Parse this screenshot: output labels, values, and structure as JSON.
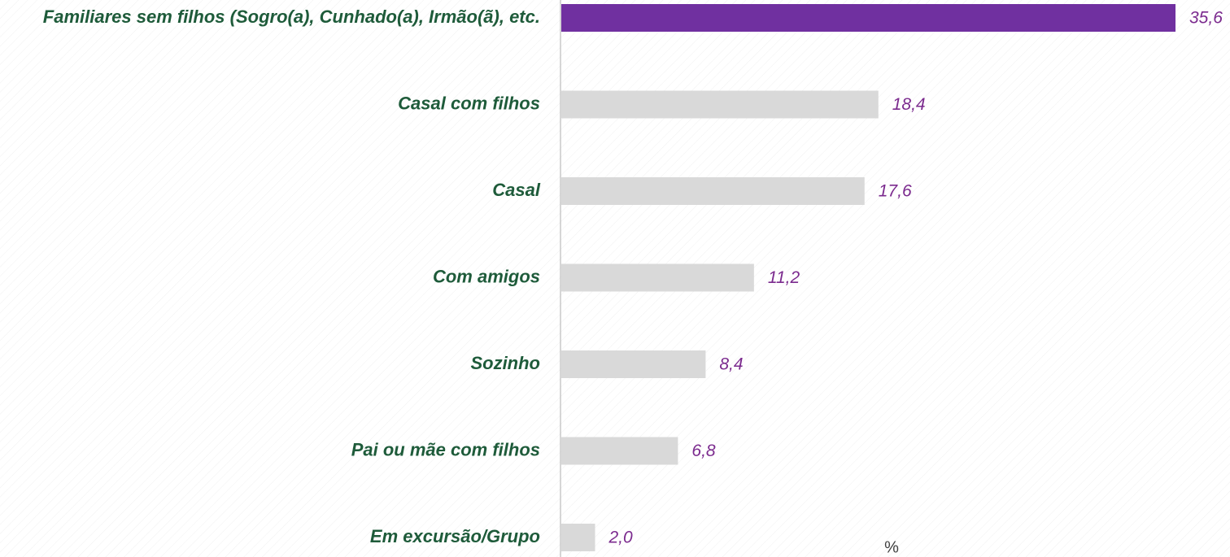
{
  "chart_data": {
    "type": "barh",
    "categories": [
      "Familiares sem filhos (Sogro(a),  Cunhado(a), Irmão(ã), etc.",
      "Casal com filhos",
      "Casal",
      "Com amigos",
      "Sozinho",
      "Pai ou mãe com filhos",
      "Em excursão/Grupo"
    ],
    "values": [
      35.6,
      18.4,
      17.6,
      11.2,
      8.4,
      6.8,
      2.0
    ],
    "value_labels": [
      "35,6",
      "18,4",
      "17,6",
      "11,2",
      "8,4",
      "6,8",
      "2,0"
    ],
    "colors": [
      "#7030a0",
      "#d9d9d9",
      "#d9d9d9",
      "#d9d9d9",
      "#d9d9d9",
      "#d9d9d9",
      "#d9d9d9"
    ],
    "unit_label": "%"
  }
}
